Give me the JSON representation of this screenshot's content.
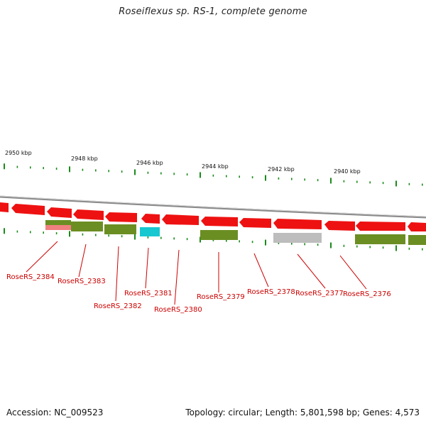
{
  "title": "Roseiflexus sp. RS-1, complete genome",
  "footer": {
    "accession": "Accession: NC_009523",
    "summary": "Topology: circular; Length: 5,801,598 bp; Genes: 4,573"
  },
  "colors": {
    "backbone": "#8a8a8a",
    "cds_forward": "#ee1111",
    "cds_reverse": "#6b8e23",
    "rna_teal": "#18c8d0",
    "pseudo_gray": "#bdbdbd",
    "pink": "#f08080",
    "tick": "#1a8a1a",
    "label": "#cc0000"
  },
  "scale": {
    "ticks": [
      "2950 kbp",
      "2948 kbp",
      "2946 kbp",
      "2944 kbp",
      "2942 kbp",
      "2940 kbp"
    ]
  },
  "labels": [
    "RoseRS_2384",
    "RoseRS_2383",
    "RoseRS_2382",
    "RoseRS_2381",
    "RoseRS_2380",
    "RoseRS_2379",
    "RoseRS_2378",
    "RoseRS_2377",
    "RoseRS_2376"
  ]
}
